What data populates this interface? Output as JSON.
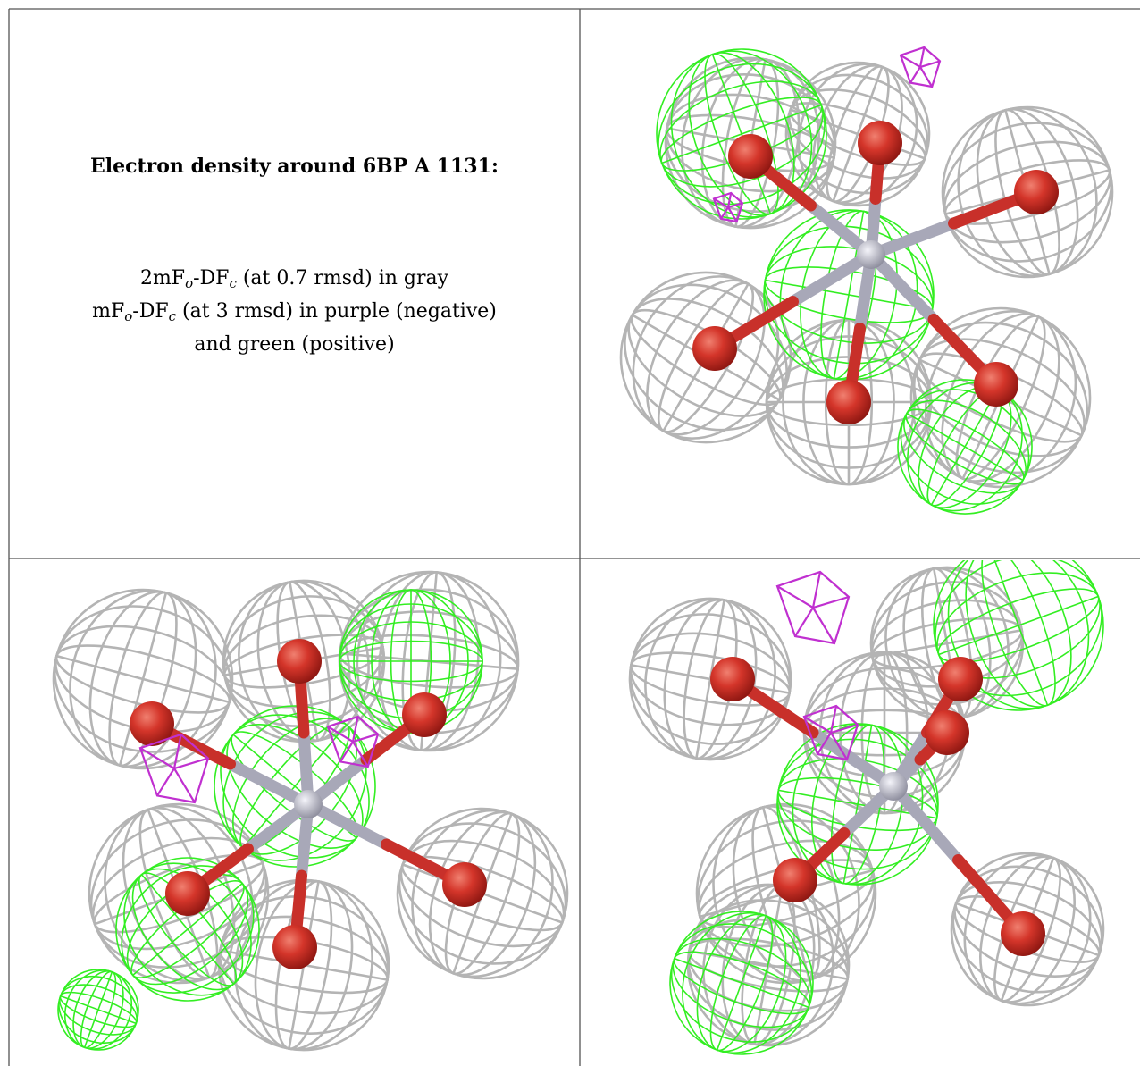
{
  "title": "Electron density around 6BP A 1131:",
  "legend_lines": [
    [
      "2mF",
      "o",
      "-DF",
      "c",
      " (at 0.7 rmsd) in gray"
    ],
    [
      "mF",
      "o",
      "-DF",
      "c",
      " (at 3 rmsd) in purple (negative)"
    ],
    [
      "and green (positive)"
    ]
  ]
}
